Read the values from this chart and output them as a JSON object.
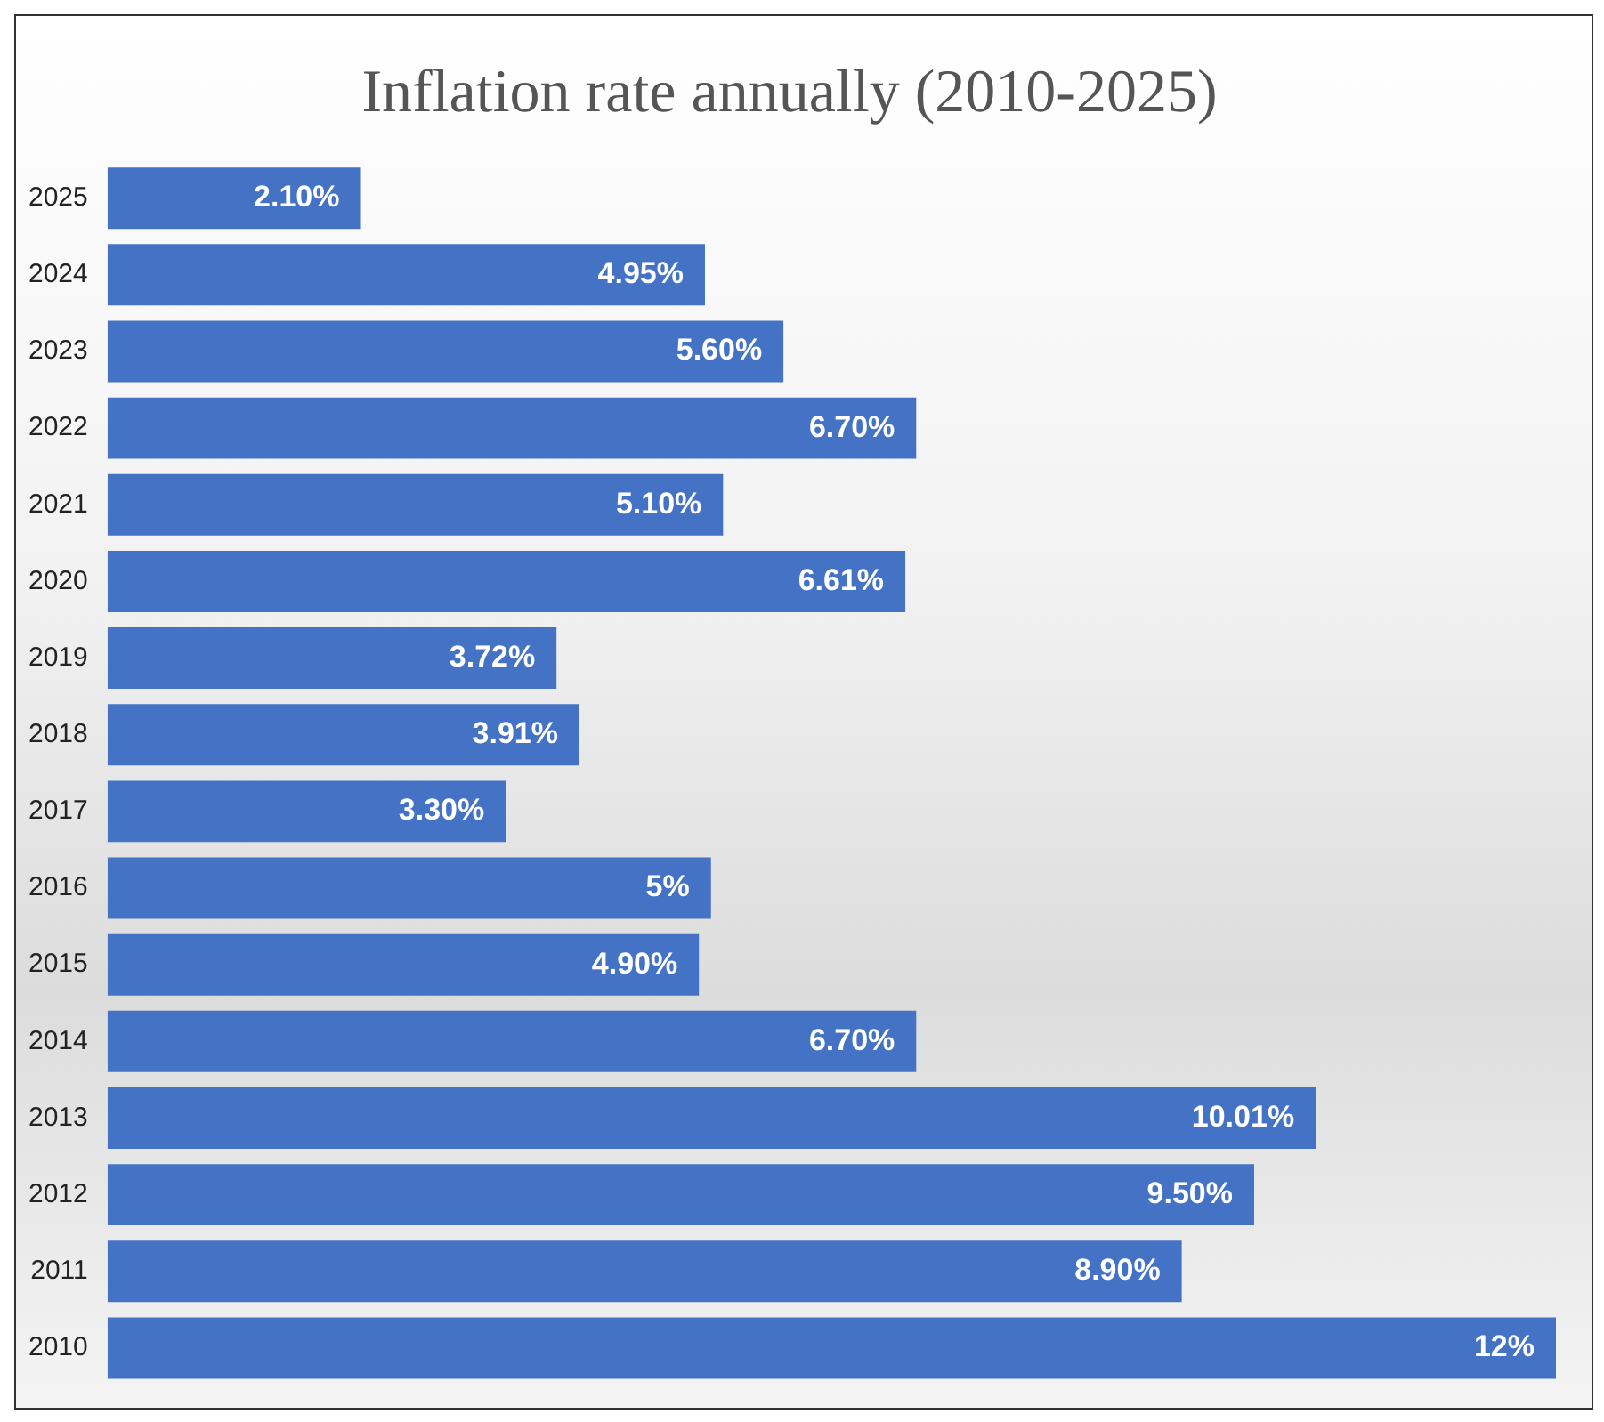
{
  "chart_data": {
    "type": "bar",
    "orientation": "horizontal",
    "title": "Inflation rate annually (2010-2025)",
    "categories": [
      "2025",
      "2024",
      "2023",
      "2022",
      "2021",
      "2020",
      "2019",
      "2018",
      "2017",
      "2016",
      "2015",
      "2014",
      "2013",
      "2012",
      "2011",
      "2010"
    ],
    "values": [
      2.1,
      4.95,
      5.6,
      6.7,
      5.1,
      6.61,
      3.72,
      3.91,
      3.3,
      5,
      4.9,
      6.7,
      10.01,
      9.5,
      8.9,
      12
    ],
    "value_labels": [
      "2.10%",
      "4.95%",
      "5.60%",
      "6.70%",
      "5.10%",
      "6.61%",
      "3.72%",
      "3.91%",
      "3.30%",
      "5%",
      "4.90%",
      "6.70%",
      "10.01%",
      "9.50%",
      "8.90%",
      "12%"
    ],
    "color": "#4472c4"
  }
}
